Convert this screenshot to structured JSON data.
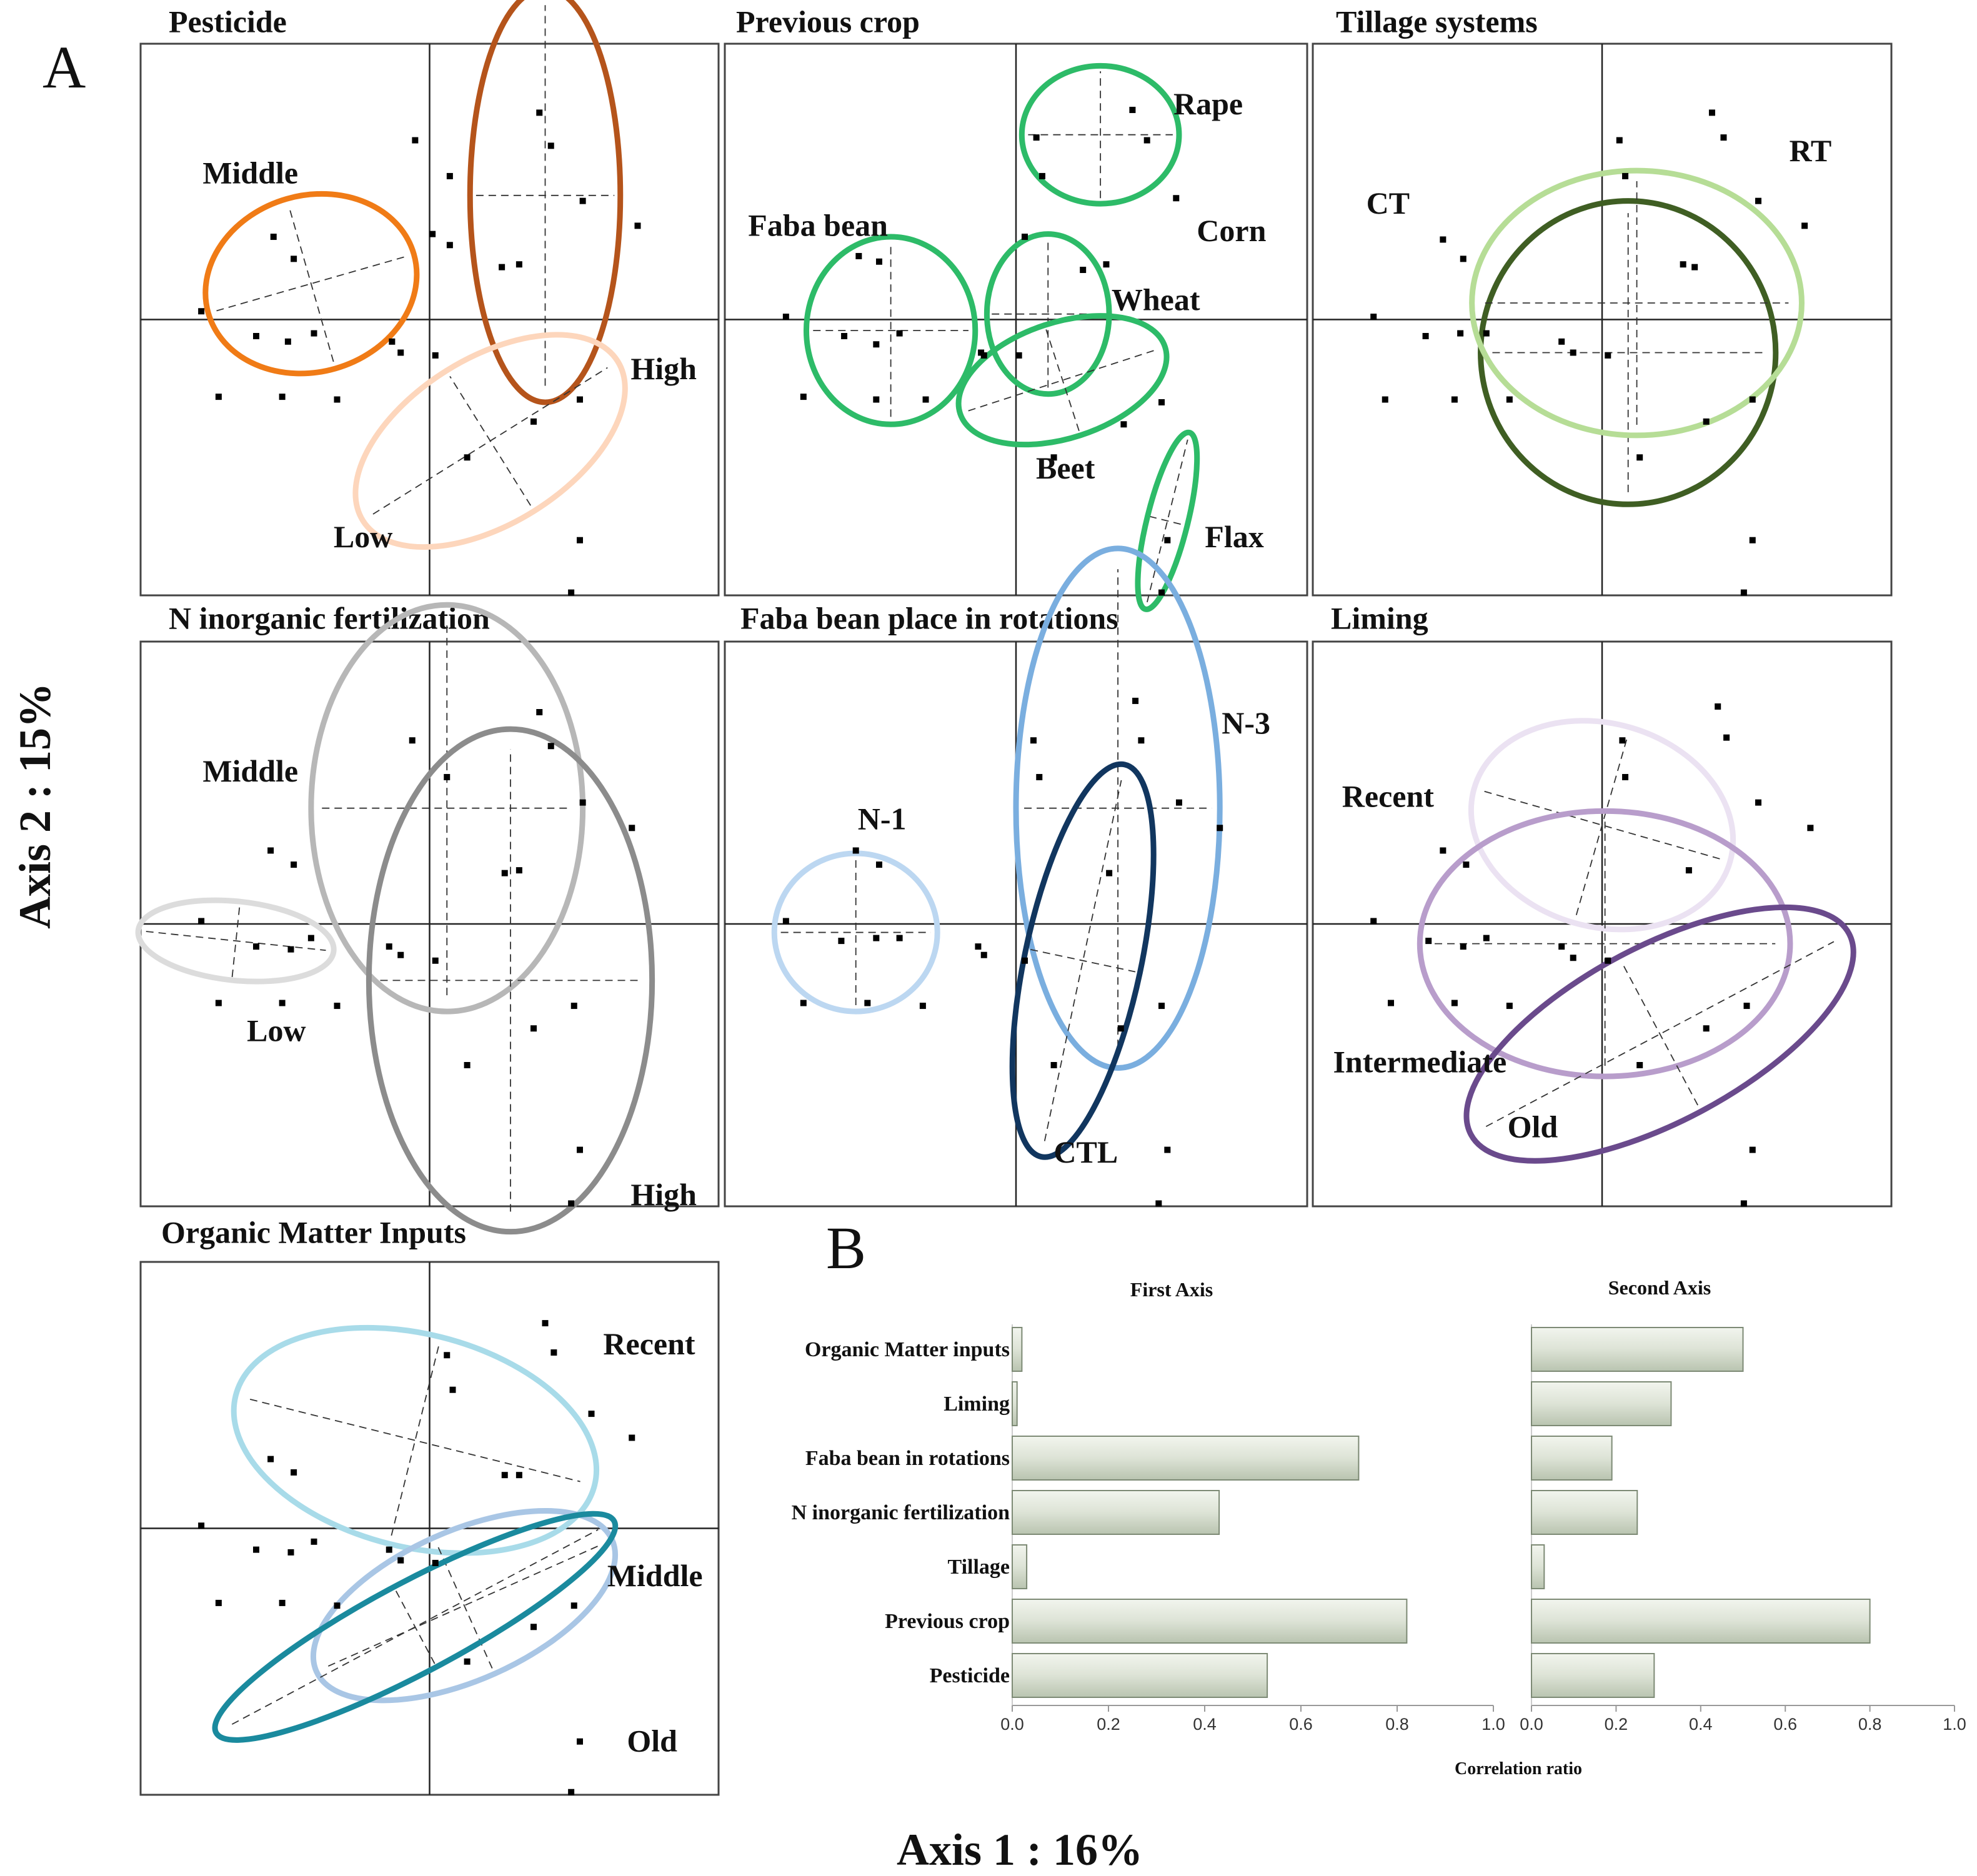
{
  "figure": {
    "panel_a_letter": "A",
    "panel_b_letter": "B",
    "xaxis_title": "Axis 1 : 16%",
    "yaxis_title": "Axis 2 : 15%"
  },
  "chart_data": [
    {
      "type": "scatter",
      "title": "Pesticide",
      "xlabel": "Axis 1 : 16%",
      "ylabel": "Axis 2 : 15%",
      "xlim": [
        -1,
        1
      ],
      "ylim": [
        -1,
        1
      ],
      "groups": [
        {
          "name": "Middle",
          "color": "#f07b16",
          "center": [
            -0.41,
            0.13
          ],
          "semi_axes": [
            0.37,
            0.32
          ],
          "angle": 16
        },
        {
          "name": "High",
          "color": "#b5541b",
          "center": [
            0.4,
            0.45
          ],
          "semi_axes": [
            0.26,
            0.75
          ],
          "angle": 0
        },
        {
          "name": "Low",
          "color": "#fdd6bc",
          "center": [
            0.21,
            -0.44
          ],
          "semi_axes": [
            0.52,
            0.3
          ],
          "angle": 32
        }
      ],
      "points": [
        [
          0.38,
          0.75
        ],
        [
          0.42,
          0.63
        ],
        [
          -0.05,
          0.65
        ],
        [
          0.07,
          0.52
        ],
        [
          0.53,
          0.43
        ],
        [
          0.72,
          0.34
        ],
        [
          -0.54,
          0.3
        ],
        [
          0.07,
          0.27
        ],
        [
          0.01,
          0.31
        ],
        [
          -0.47,
          0.22
        ],
        [
          0.25,
          0.19
        ],
        [
          0.31,
          0.2
        ],
        [
          -0.79,
          0.03
        ],
        [
          -0.6,
          -0.06
        ],
        [
          -0.49,
          -0.08
        ],
        [
          -0.4,
          -0.05
        ],
        [
          -0.13,
          -0.08
        ],
        [
          -0.1,
          -0.12
        ],
        [
          0.02,
          -0.13
        ],
        [
          -0.73,
          -0.28
        ],
        [
          -0.51,
          -0.28
        ],
        [
          -0.32,
          -0.29
        ],
        [
          0.52,
          -0.29
        ],
        [
          0.36,
          -0.37
        ],
        [
          0.13,
          -0.5
        ],
        [
          0.52,
          -0.8
        ],
        [
          0.49,
          -0.99
        ]
      ],
      "group_labels": [
        "Middle",
        "High",
        "Low"
      ]
    },
    {
      "type": "scatter",
      "title": "Previous crop",
      "xlabel": "Axis 1 : 16%",
      "ylabel": "Axis 2 : 15%",
      "xlim": [
        -1,
        1
      ],
      "ylim": [
        -1,
        1
      ],
      "groups": [
        {
          "name": "Rape",
          "color": "#2dbb68",
          "center": [
            0.29,
            0.67
          ],
          "semi_axes": [
            0.27,
            0.25
          ],
          "angle": 0
        },
        {
          "name": "Faba bean",
          "color": "#2dbb68",
          "center": [
            -0.43,
            -0.04
          ],
          "semi_axes": [
            0.29,
            0.34
          ],
          "angle": 0
        },
        {
          "name": "Wheat",
          "color": "#2dbb68",
          "center": [
            0.11,
            0.02
          ],
          "semi_axes": [
            0.21,
            0.29
          ],
          "angle": 0
        },
        {
          "name": "Beet",
          "color": "#2dbb68",
          "center": [
            0.16,
            -0.22
          ],
          "semi_axes": [
            0.37,
            0.21
          ],
          "angle": 18
        },
        {
          "name": "Flax",
          "color": "#2dbb68",
          "center": [
            0.52,
            -0.73
          ],
          "semi_axes": [
            0.07,
            0.33
          ],
          "angle": -14
        }
      ],
      "points": [
        [
          0.4,
          0.76
        ],
        [
          0.45,
          0.65
        ],
        [
          0.07,
          0.66
        ],
        [
          0.09,
          0.52
        ],
        [
          0.55,
          0.44
        ],
        [
          0.03,
          0.3
        ],
        [
          0.31,
          0.2
        ],
        [
          0.23,
          0.18
        ],
        [
          0.03,
          0.3
        ],
        [
          -0.54,
          0.23
        ],
        [
          -0.47,
          0.21
        ],
        [
          -0.79,
          0.01
        ],
        [
          -0.59,
          -0.06
        ],
        [
          -0.48,
          -0.09
        ],
        [
          -0.4,
          -0.05
        ],
        [
          -0.12,
          -0.12
        ],
        [
          -0.11,
          -0.13
        ],
        [
          0.01,
          -0.13
        ],
        [
          -0.73,
          -0.28
        ],
        [
          -0.48,
          -0.29
        ],
        [
          -0.31,
          -0.29
        ],
        [
          0.5,
          -0.3
        ],
        [
          0.37,
          -0.38
        ],
        [
          0.13,
          -0.5
        ],
        [
          0.52,
          -0.8
        ],
        [
          0.5,
          -0.99
        ]
      ],
      "group_labels": [
        "Rape",
        "Corn",
        "Faba bean",
        "Wheat",
        "Beet",
        "Flax"
      ]
    },
    {
      "type": "scatter",
      "title": "Tillage systems",
      "xlabel": "Axis 1 : 16%",
      "ylabel": "Axis 2 : 15%",
      "xlim": [
        -1,
        1
      ],
      "ylim": [
        -1,
        1
      ],
      "groups": [
        {
          "name": "CT",
          "color": "#3f5e23",
          "center": [
            0.09,
            -0.12
          ],
          "semi_axes": [
            0.51,
            0.55
          ],
          "angle": 0
        },
        {
          "name": "RT",
          "color": "#b6dd96",
          "center": [
            0.12,
            0.06
          ],
          "semi_axes": [
            0.57,
            0.48
          ],
          "angle": 0
        }
      ],
      "points": [
        [
          0.38,
          0.75
        ],
        [
          0.42,
          0.66
        ],
        [
          0.06,
          0.65
        ],
        [
          0.08,
          0.52
        ],
        [
          0.54,
          0.43
        ],
        [
          0.7,
          0.34
        ],
        [
          -0.55,
          0.29
        ],
        [
          0.28,
          0.2
        ],
        [
          0.32,
          0.19
        ],
        [
          -0.48,
          0.22
        ],
        [
          -0.79,
          0.01
        ],
        [
          -0.61,
          -0.06
        ],
        [
          -0.49,
          -0.05
        ],
        [
          -0.4,
          -0.05
        ],
        [
          -0.14,
          -0.08
        ],
        [
          -0.1,
          -0.12
        ],
        [
          0.02,
          -0.13
        ],
        [
          -0.75,
          -0.29
        ],
        [
          -0.51,
          -0.29
        ],
        [
          -0.32,
          -0.29
        ],
        [
          0.52,
          -0.29
        ],
        [
          0.36,
          -0.37
        ],
        [
          0.13,
          -0.5
        ],
        [
          0.52,
          -0.8
        ],
        [
          0.49,
          -0.99
        ]
      ],
      "group_labels": [
        "CT",
        "RT"
      ]
    },
    {
      "type": "scatter",
      "title": "N inorganic fertilization",
      "xlabel": "Axis 1 : 16%",
      "ylabel": "Axis 2 : 15%",
      "xlim": [
        -1,
        1
      ],
      "ylim": [
        -1,
        1
      ],
      "groups": [
        {
          "name": "Middle",
          "color": "#b7b7b7",
          "center": [
            0.06,
            0.41
          ],
          "semi_axes": [
            0.47,
            0.72
          ],
          "angle": 0
        },
        {
          "name": "Low",
          "color": "#dcdcdc",
          "center": [
            -0.67,
            -0.06
          ],
          "semi_axes": [
            0.34,
            0.14
          ],
          "angle": -6
        },
        {
          "name": "High",
          "color": "#8c8c8c",
          "center": [
            0.28,
            -0.2
          ],
          "semi_axes": [
            0.49,
            0.89
          ],
          "angle": 0
        }
      ],
      "points": [
        [
          0.38,
          0.75
        ],
        [
          0.42,
          0.63
        ],
        [
          -0.06,
          0.65
        ],
        [
          0.06,
          0.52
        ],
        [
          0.53,
          0.43
        ],
        [
          0.7,
          0.34
        ],
        [
          -0.55,
          0.26
        ],
        [
          0.26,
          0.18
        ],
        [
          0.31,
          0.19
        ],
        [
          -0.47,
          0.21
        ],
        [
          -0.79,
          0.01
        ],
        [
          -0.6,
          -0.08
        ],
        [
          -0.48,
          -0.09
        ],
        [
          -0.41,
          -0.05
        ],
        [
          -0.14,
          -0.08
        ],
        [
          -0.1,
          -0.11
        ],
        [
          0.02,
          -0.13
        ],
        [
          -0.73,
          -0.28
        ],
        [
          -0.51,
          -0.28
        ],
        [
          -0.32,
          -0.29
        ],
        [
          0.5,
          -0.29
        ],
        [
          0.36,
          -0.37
        ],
        [
          0.13,
          -0.5
        ],
        [
          0.52,
          -0.8
        ],
        [
          0.49,
          -0.99
        ]
      ],
      "group_labels": [
        "Middle",
        "Low",
        "High"
      ]
    },
    {
      "type": "scatter",
      "title": "Faba bean place in rotations",
      "xlabel": "Axis 1 : 16%",
      "ylabel": "Axis 2 : 15%",
      "xlim": [
        -1,
        1
      ],
      "ylim": [
        -1,
        1
      ],
      "groups": [
        {
          "name": "N-1",
          "color": "#bcd7f1",
          "center": [
            -0.55,
            -0.03
          ],
          "semi_axes": [
            0.28,
            0.28
          ],
          "angle": 0
        },
        {
          "name": "N-3",
          "color": "#7aaedf",
          "center": [
            0.35,
            0.41
          ],
          "semi_axes": [
            0.35,
            0.92
          ],
          "angle": 0
        },
        {
          "name": "CTL",
          "color": "#11365f",
          "center": [
            0.23,
            -0.13
          ],
          "semi_axes": [
            0.2,
            0.71
          ],
          "angle": -12
        }
      ],
      "points": [
        [
          0.41,
          0.79
        ],
        [
          0.43,
          0.65
        ],
        [
          0.06,
          0.65
        ],
        [
          0.08,
          0.52
        ],
        [
          0.56,
          0.43
        ],
        [
          0.7,
          0.34
        ],
        [
          -0.55,
          0.26
        ],
        [
          0.32,
          0.18
        ],
        [
          -0.47,
          0.21
        ],
        [
          -0.79,
          0.01
        ],
        [
          -0.6,
          -0.06
        ],
        [
          -0.48,
          -0.05
        ],
        [
          -0.4,
          -0.05
        ],
        [
          -0.13,
          -0.08
        ],
        [
          -0.11,
          -0.11
        ],
        [
          0.03,
          -0.13
        ],
        [
          -0.73,
          -0.28
        ],
        [
          -0.51,
          -0.28
        ],
        [
          -0.32,
          -0.29
        ],
        [
          0.5,
          -0.29
        ],
        [
          0.36,
          -0.37
        ],
        [
          0.13,
          -0.5
        ],
        [
          0.52,
          -0.8
        ],
        [
          0.49,
          -0.99
        ]
      ],
      "group_labels": [
        "N-1",
        "N-3",
        "CTL"
      ]
    },
    {
      "type": "scatter",
      "title": "Liming",
      "xlabel": "Axis 1 : 16%",
      "ylabel": "Axis 2 : 15%",
      "xlim": [
        -1,
        1
      ],
      "ylim": [
        -1,
        1
      ],
      "groups": [
        {
          "name": "Recent",
          "color": "#ebe2f2",
          "center": [
            0.0,
            0.35
          ],
          "semi_axes": [
            0.46,
            0.36
          ],
          "angle": -16
        },
        {
          "name": "Intermediate",
          "color": "#b89dcb",
          "center": [
            0.01,
            -0.07
          ],
          "semi_axes": [
            0.64,
            0.47
          ],
          "angle": 0
        },
        {
          "name": "Old",
          "color": "#6a4a8c",
          "center": [
            0.2,
            -0.39
          ],
          "semi_axes": [
            0.74,
            0.31
          ],
          "angle": 28
        }
      ],
      "points": [
        [
          0.4,
          0.77
        ],
        [
          0.43,
          0.66
        ],
        [
          0.07,
          0.65
        ],
        [
          0.08,
          0.52
        ],
        [
          0.54,
          0.43
        ],
        [
          0.72,
          0.34
        ],
        [
          -0.55,
          0.26
        ],
        [
          0.3,
          0.19
        ],
        [
          -0.47,
          0.21
        ],
        [
          -0.79,
          0.01
        ],
        [
          -0.6,
          -0.06
        ],
        [
          -0.48,
          -0.08
        ],
        [
          -0.4,
          -0.05
        ],
        [
          -0.14,
          -0.08
        ],
        [
          -0.1,
          -0.12
        ],
        [
          0.02,
          -0.13
        ],
        [
          -0.73,
          -0.28
        ],
        [
          -0.51,
          -0.28
        ],
        [
          -0.32,
          -0.29
        ],
        [
          0.5,
          -0.29
        ],
        [
          0.36,
          -0.37
        ],
        [
          0.13,
          -0.5
        ],
        [
          0.52,
          -0.8
        ],
        [
          0.49,
          -0.99
        ]
      ],
      "group_labels": [
        "Recent",
        "Intermediate",
        "Old"
      ]
    },
    {
      "type": "scatter",
      "title": "Organic Matter Inputs",
      "xlabel": "Axis 1 : 16%",
      "ylabel": "Axis 2 : 15%",
      "xlim": [
        -1,
        1
      ],
      "ylim": [
        -1,
        1
      ],
      "groups": [
        {
          "name": "Recent",
          "color": "#a8dbe9",
          "center": [
            -0.05,
            0.33
          ],
          "semi_axes": [
            0.64,
            0.4
          ],
          "angle": -14
        },
        {
          "name": "Middle",
          "color": "#a9c6e5",
          "center": [
            0.12,
            -0.29
          ],
          "semi_axes": [
            0.56,
            0.28
          ],
          "angle": 24
        },
        {
          "name": "Old",
          "color": "#1a8a9e",
          "center": [
            -0.05,
            -0.37
          ],
          "semi_axes": [
            0.78,
            0.17
          ],
          "angle": 28
        }
      ],
      "points": [
        [
          0.4,
          0.77
        ],
        [
          0.43,
          0.66
        ],
        [
          0.06,
          0.65
        ],
        [
          0.08,
          0.52
        ],
        [
          0.56,
          0.43
        ],
        [
          0.7,
          0.34
        ],
        [
          -0.55,
          0.26
        ],
        [
          0.26,
          0.2
        ],
        [
          0.31,
          0.2
        ],
        [
          -0.47,
          0.21
        ],
        [
          -0.79,
          0.01
        ],
        [
          -0.6,
          -0.08
        ],
        [
          -0.48,
          -0.09
        ],
        [
          -0.4,
          -0.05
        ],
        [
          -0.14,
          -0.08
        ],
        [
          -0.1,
          -0.12
        ],
        [
          0.02,
          -0.13
        ],
        [
          -0.73,
          -0.28
        ],
        [
          -0.51,
          -0.28
        ],
        [
          -0.32,
          -0.29
        ],
        [
          0.5,
          -0.29
        ],
        [
          0.36,
          -0.37
        ],
        [
          0.13,
          -0.5
        ],
        [
          0.52,
          -0.8
        ],
        [
          0.49,
          -0.99
        ]
      ],
      "group_labels": [
        "Recent",
        "Middle",
        "Old"
      ]
    },
    {
      "type": "bar",
      "orientation": "horizontal",
      "title": "First Axis",
      "xlabel": "Correlation ratio",
      "categories": [
        "Organic Matter inputs",
        "Liming",
        "Faba bean in rotations",
        "N inorganic fertilization",
        "Tillage",
        "Previous crop",
        "Pesticide"
      ],
      "values": [
        0.02,
        0.01,
        0.72,
        0.43,
        0.03,
        0.82,
        0.53
      ],
      "xlim": [
        0,
        1
      ],
      "ticks": [
        "0.0",
        "0.2",
        "0.4",
        "0.6",
        "0.8",
        "1.0"
      ],
      "bar_color": "#dde3d6"
    },
    {
      "type": "bar",
      "orientation": "horizontal",
      "title": "Second Axis",
      "xlabel": "Correlation ratio",
      "categories": [
        "Organic Matter inputs",
        "Liming",
        "Faba bean in rotations",
        "N inorganic fertilization",
        "Tillage",
        "Previous crop",
        "Pesticide"
      ],
      "values": [
        0.5,
        0.33,
        0.19,
        0.25,
        0.03,
        0.8,
        0.29
      ],
      "xlim": [
        0,
        1
      ],
      "ticks": [
        "0.0",
        "0.2",
        "0.4",
        "0.6",
        "0.8",
        "1.0"
      ],
      "bar_color": "#dde3d6"
    }
  ]
}
